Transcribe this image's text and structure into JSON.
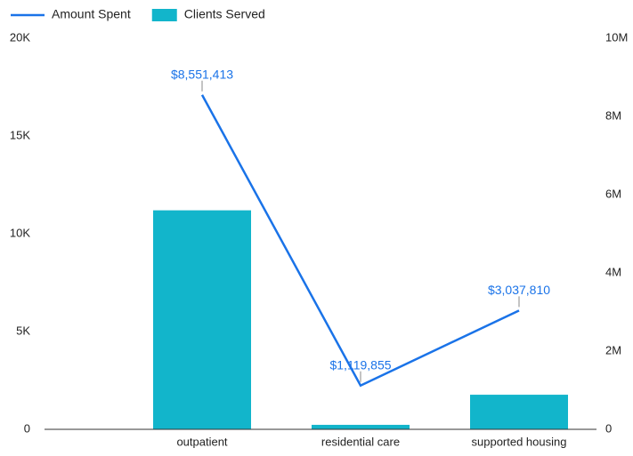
{
  "chart_data": {
    "type": "combo",
    "categories": [
      "outpatient",
      "residential care",
      "supported housing"
    ],
    "series": [
      {
        "name": "Amount Spent",
        "type": "line",
        "axis": "y2",
        "color": "#1a73e8",
        "values": [
          8551413,
          1119855,
          3037810
        ],
        "value_labels": [
          "$8,551,413",
          "$1,119,855",
          "$3,037,810"
        ]
      },
      {
        "name": "Clients Served",
        "type": "bar",
        "axis": "y",
        "color": "#12b5cb",
        "values": [
          11200,
          230,
          1770
        ]
      }
    ],
    "ylim": [
      0,
      20000
    ],
    "yticks": [
      0,
      {
        "value": 5000,
        "label": "5K"
      },
      {
        "value": 10000,
        "label": "10K"
      },
      {
        "value": 15000,
        "label": "15K"
      },
      {
        "value": 20000,
        "label": "20K"
      }
    ],
    "y2lim": [
      0,
      10000000
    ],
    "y2ticks": [
      0,
      {
        "value": 2000000,
        "label": "2M"
      },
      {
        "value": 4000000,
        "label": "4M"
      },
      {
        "value": 6000000,
        "label": "6M"
      },
      {
        "value": 8000000,
        "label": "8M"
      },
      {
        "value": 10000000,
        "label": "10M"
      }
    ],
    "legend": "top-left",
    "grid": false
  }
}
